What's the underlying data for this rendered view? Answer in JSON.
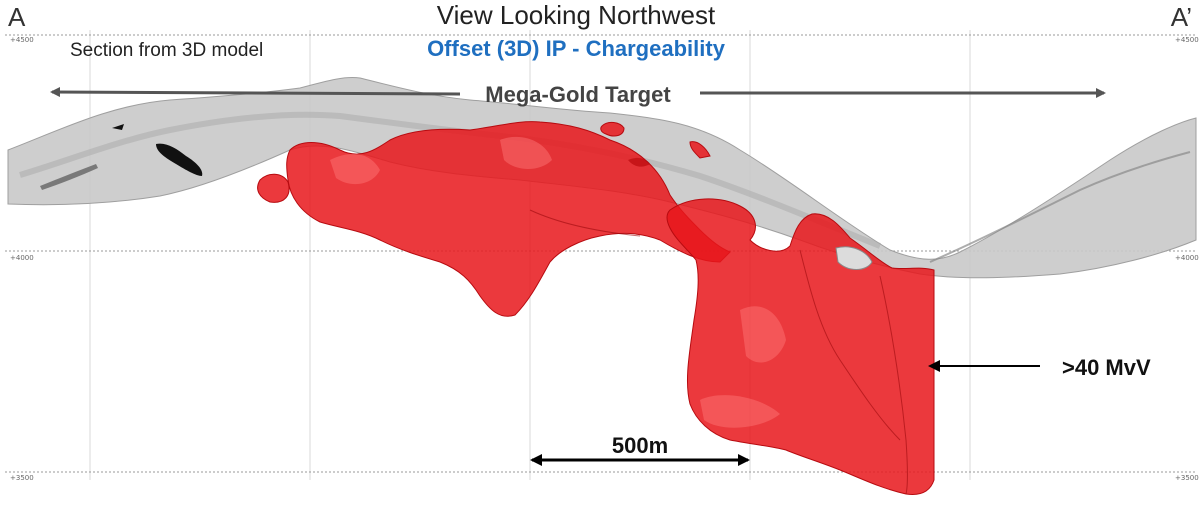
{
  "section": {
    "left_label": "A",
    "right_label": "A’",
    "title": "View Looking Northwest",
    "subtitle": "Section from 3D model",
    "method_label": "Offset (3D) IP - Chargeability"
  },
  "target": {
    "label": "Mega-Gold Target"
  },
  "annotation": {
    "label": ">40 MvV"
  },
  "scale_bar": {
    "label": "500m"
  },
  "elevations": {
    "top": "+4500",
    "mid": "+4000",
    "bottom": "+3500"
  },
  "colors": {
    "title_blue": "#1f6fc0",
    "chargeability_red": "#e8161b",
    "terrain_gray": "#c9c9c9",
    "arrow_gray": "#555555"
  }
}
